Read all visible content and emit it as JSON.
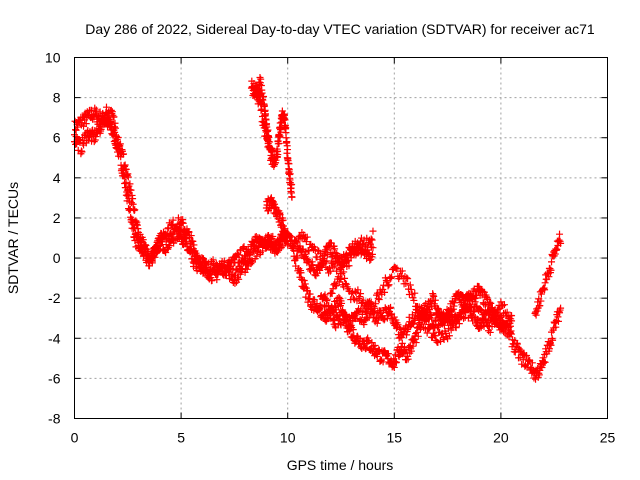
{
  "chart_data": {
    "type": "scatter",
    "title": "Day 286 of 2022, Sidereal Day-to-day VTEC variation (SDTVAR) for receiver ac71",
    "xlabel": "GPS time / hours",
    "ylabel": "SDTVAR / TECUs",
    "xlim": [
      0,
      25
    ],
    "ylim": [
      -8,
      10
    ],
    "xticks": [
      "0",
      "5",
      "10",
      "15",
      "20",
      "25"
    ],
    "yticks": [
      "-8",
      "-6",
      "-4",
      "-2",
      "0",
      "2",
      "4",
      "6",
      "8",
      "10"
    ],
    "grid": true,
    "marker": "plus",
    "color": "#ff0000",
    "series": [
      {
        "name": "ac71",
        "tracks": [
          {
            "x": [
              0.0,
              0.3,
              0.6,
              0.9,
              1.2,
              1.5,
              1.7,
              1.9,
              2.1,
              2.3,
              2.5,
              2.7,
              2.9,
              3.1,
              3.3,
              3.5,
              3.7,
              4.0,
              4.3,
              4.6,
              4.9,
              5.1,
              5.3,
              5.5,
              5.7,
              5.9,
              6.2,
              6.5,
              6.8,
              7.1,
              7.4,
              7.7,
              8.0,
              8.3,
              8.6,
              8.9,
              9.2,
              9.5,
              9.8,
              10.1,
              10.4,
              10.7,
              11.0,
              11.3,
              11.6,
              11.9,
              12.2,
              12.5,
              12.8,
              13.1,
              13.4,
              13.7,
              14.0
            ],
            "y": [
              6.5,
              6.8,
              7.0,
              7.2,
              7.0,
              6.8,
              6.5,
              6.0,
              5.2,
              4.2,
              3.0,
              1.8,
              0.8,
              0.5,
              0.2,
              -0.2,
              0.3,
              0.8,
              0.6,
              1.0,
              1.3,
              1.0,
              0.5,
              0.0,
              -0.3,
              -0.5,
              -0.6,
              -0.4,
              -0.6,
              -0.5,
              -0.3,
              0.0,
              0.3,
              0.6,
              0.8,
              1.0,
              0.8,
              0.6,
              1.1,
              0.9,
              0.6,
              0.3,
              -0.3,
              -0.6,
              -0.2,
              0.5,
              0.3,
              -0.5,
              -0.2,
              0.4,
              0.6,
              0.0,
              0.4
            ]
          },
          {
            "x": [
              0.0,
              0.3,
              0.6,
              0.9,
              1.2,
              1.5,
              1.8,
              2.1,
              2.4,
              2.7,
              3.0,
              3.3,
              3.6,
              3.9,
              4.2,
              4.5,
              4.8,
              5.1,
              5.4,
              5.7,
              6.0,
              6.3,
              6.6,
              6.9,
              7.2,
              7.5,
              7.8,
              8.1,
              8.4,
              8.7,
              9.0,
              9.3,
              9.6,
              9.9
            ],
            "y": [
              6.0,
              5.5,
              6.2,
              6.0,
              6.5,
              7.3,
              7.0,
              5.8,
              4.5,
              2.8,
              1.2,
              0.4,
              0.0,
              0.6,
              1.2,
              1.5,
              1.7,
              1.6,
              1.0,
              0.2,
              -0.2,
              -0.7,
              -0.9,
              -0.4,
              -0.6,
              -1.0,
              -0.6,
              -0.3,
              0.2,
              0.5,
              0.8,
              0.4,
              0.6,
              1.2
            ]
          },
          {
            "x": [
              8.3,
              8.5,
              8.7,
              8.9,
              9.1,
              9.3,
              9.5,
              9.6,
              9.7,
              9.8,
              9.9,
              10.0,
              10.1,
              10.2
            ],
            "y": [
              8.5,
              8.3,
              7.8,
              6.5,
              5.5,
              4.8,
              5.2,
              6.0,
              6.8,
              7.2,
              6.5,
              5.0,
              4.0,
              3.2
            ]
          },
          {
            "x": [
              8.5,
              8.7,
              8.9,
              9.0,
              9.1,
              9.3
            ],
            "y": [
              8.0,
              8.8,
              7.5,
              6.5,
              6.0,
              5.0
            ]
          },
          {
            "x": [
              9.0,
              9.2,
              9.4,
              9.6,
              9.8,
              10.0
            ],
            "y": [
              2.5,
              2.8,
              2.4,
              2.0,
              1.6,
              1.0
            ]
          },
          {
            "x": [
              10.2,
              10.5,
              10.8,
              11.1,
              11.4,
              11.7,
              12.0,
              12.3,
              12.6,
              12.9,
              13.2,
              13.5,
              13.8,
              14.1,
              14.4,
              14.7,
              15.0,
              15.3,
              15.6,
              15.9,
              16.2,
              16.5,
              16.8,
              17.1,
              17.4,
              17.7,
              18.0,
              18.3,
              18.6,
              18.9,
              19.2,
              19.5,
              19.8,
              20.1,
              20.4,
              20.7,
              21.0,
              21.3,
              21.6,
              21.9,
              22.2,
              22.5,
              22.8
            ],
            "y": [
              0.5,
              -0.5,
              -1.5,
              -2.2,
              -2.5,
              -2.0,
              -2.8,
              -3.2,
              -3.0,
              -3.5,
              -4.0,
              -4.2,
              -4.3,
              -4.6,
              -4.9,
              -5.0,
              -5.2,
              -4.5,
              -4.8,
              -4.2,
              -3.5,
              -2.5,
              -2.0,
              -2.8,
              -3.2,
              -2.5,
              -1.8,
              -2.2,
              -2.0,
              -1.6,
              -2.0,
              -2.5,
              -3.0,
              -3.2,
              -3.8,
              -4.5,
              -5.0,
              -5.2,
              -5.8,
              -5.5,
              -4.5,
              -3.5,
              -2.5
            ]
          },
          {
            "x": [
              11.5,
              11.8,
              12.1,
              12.4,
              12.7,
              13.0,
              13.3,
              13.6,
              13.9,
              14.2,
              14.5,
              14.8,
              15.1,
              15.4,
              15.7,
              16.0,
              16.3,
              16.6,
              16.9,
              17.2,
              17.5,
              17.8,
              18.1,
              18.4,
              18.7,
              19.0,
              19.3,
              19.6,
              19.9,
              20.2,
              20.5
            ],
            "y": [
              -2.5,
              -3.0,
              -2.6,
              -2.2,
              -3.0,
              -3.2,
              -2.8,
              -3.0,
              -2.5,
              -3.0,
              -2.8,
              -2.6,
              -3.5,
              -4.0,
              -3.2,
              -2.8,
              -2.5,
              -3.0,
              -3.2,
              -3.0,
              -2.8,
              -3.2,
              -3.0,
              -2.6,
              -2.9,
              -3.3,
              -3.0,
              -2.7,
              -3.2,
              -3.5,
              -3.0
            ]
          },
          {
            "x": [
              12.0,
              12.5,
              13.0,
              13.5,
              14.0,
              14.5,
              15.0,
              15.5,
              16.0,
              16.5,
              17.0,
              17.5,
              18.0,
              18.5,
              19.0,
              19.5,
              20.0,
              20.5
            ],
            "y": [
              -1.5,
              -1.0,
              -1.8,
              -2.0,
              -2.5,
              -1.5,
              -0.5,
              -1.0,
              -2.2,
              -3.5,
              -4.0,
              -3.8,
              -3.0,
              -2.0,
              -2.8,
              -3.5,
              -2.5,
              -3.0
            ]
          },
          {
            "x": [
              10.5,
              11.0,
              11.5,
              12.0,
              12.5,
              13.0,
              13.5,
              14.0
            ],
            "y": [
              1.2,
              0.6,
              0.0,
              -0.6,
              -0.2,
              0.4,
              0.8,
              1.0
            ]
          },
          {
            "x": [
              21.6,
              21.9,
              22.2,
              22.5,
              22.8
            ],
            "y": [
              -2.8,
              -1.8,
              -0.8,
              0.2,
              1.0
            ]
          }
        ]
      }
    ]
  }
}
